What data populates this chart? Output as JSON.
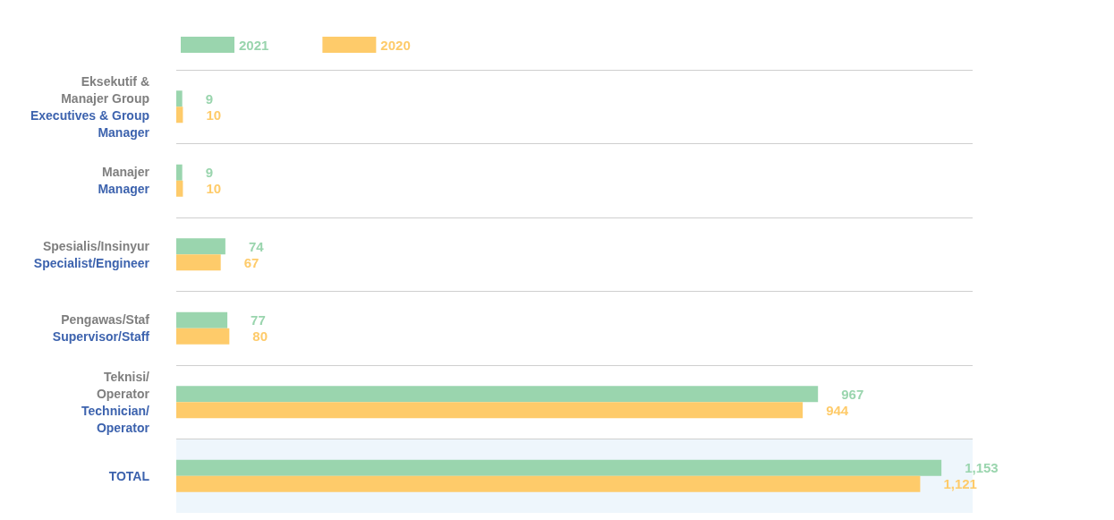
{
  "chart_data": {
    "type": "bar",
    "orientation": "horizontal",
    "categories": [
      "Eksekutif &\nManajer Group\nExecutives & Group\nManager",
      "Manajer\nManager",
      "Spesialis/Insinyur\nSpecialist/Engineer",
      "Pengawas/Staf\nSupervisor/Staff",
      "Teknisi/\nOperator\nTechnician/\nOperator",
      "TOTAL"
    ],
    "series": [
      {
        "name": "2021",
        "color": "#9ad5ae",
        "values": [
          9,
          9,
          74,
          77,
          967,
          1153
        ],
        "value_labels": [
          "9",
          "9",
          "74",
          "77",
          "967",
          "1,153"
        ]
      },
      {
        "name": "2020",
        "color": "#fecb6a",
        "values": [
          10,
          10,
          67,
          80,
          944,
          1121
        ],
        "value_labels": [
          "10",
          "10",
          "67",
          "80",
          "944",
          "1,121"
        ]
      }
    ],
    "legend": "top left",
    "grid": "y",
    "tick_labels": "y",
    "bands": [
      {
        "axis": "y",
        "from": "TOTAL",
        "to": "TOTAL",
        "color": "#eef6fc"
      }
    ]
  }
}
